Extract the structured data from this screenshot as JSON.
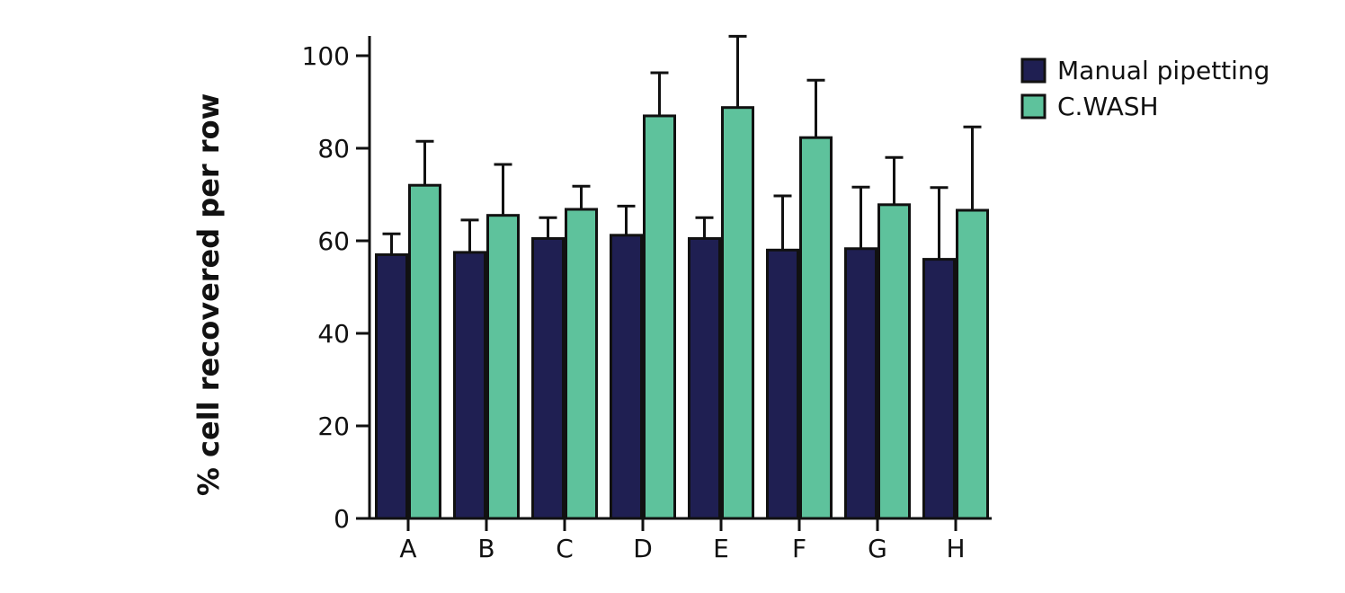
{
  "chart_data": {
    "type": "bar",
    "title": "",
    "xlabel": "",
    "ylabel": "% cell recovered per row",
    "categories": [
      "A",
      "B",
      "C",
      "D",
      "E",
      "F",
      "G",
      "H"
    ],
    "series": [
      {
        "name": "Manual pipetting",
        "color": "#1f1f52",
        "values": [
          57,
          57.5,
          60.5,
          61.2,
          60.5,
          58,
          58.3,
          56
        ],
        "error": [
          4.5,
          7,
          4.5,
          6.3,
          4.5,
          11.7,
          13.3,
          15.5
        ]
      },
      {
        "name": "C.WASH",
        "color": "#5ec29c",
        "values": [
          72,
          65.5,
          66.8,
          87,
          88.8,
          82.3,
          67.8,
          66.6
        ],
        "error": [
          9.5,
          11,
          5,
          9.3,
          15.4,
          12.4,
          10.2,
          18
        ]
      }
    ],
    "ylim": [
      0,
      100
    ],
    "yticks": [
      0,
      20,
      40,
      60,
      80,
      100
    ],
    "grid": false,
    "legend_position": "top-right",
    "axis_color": "#111111"
  }
}
